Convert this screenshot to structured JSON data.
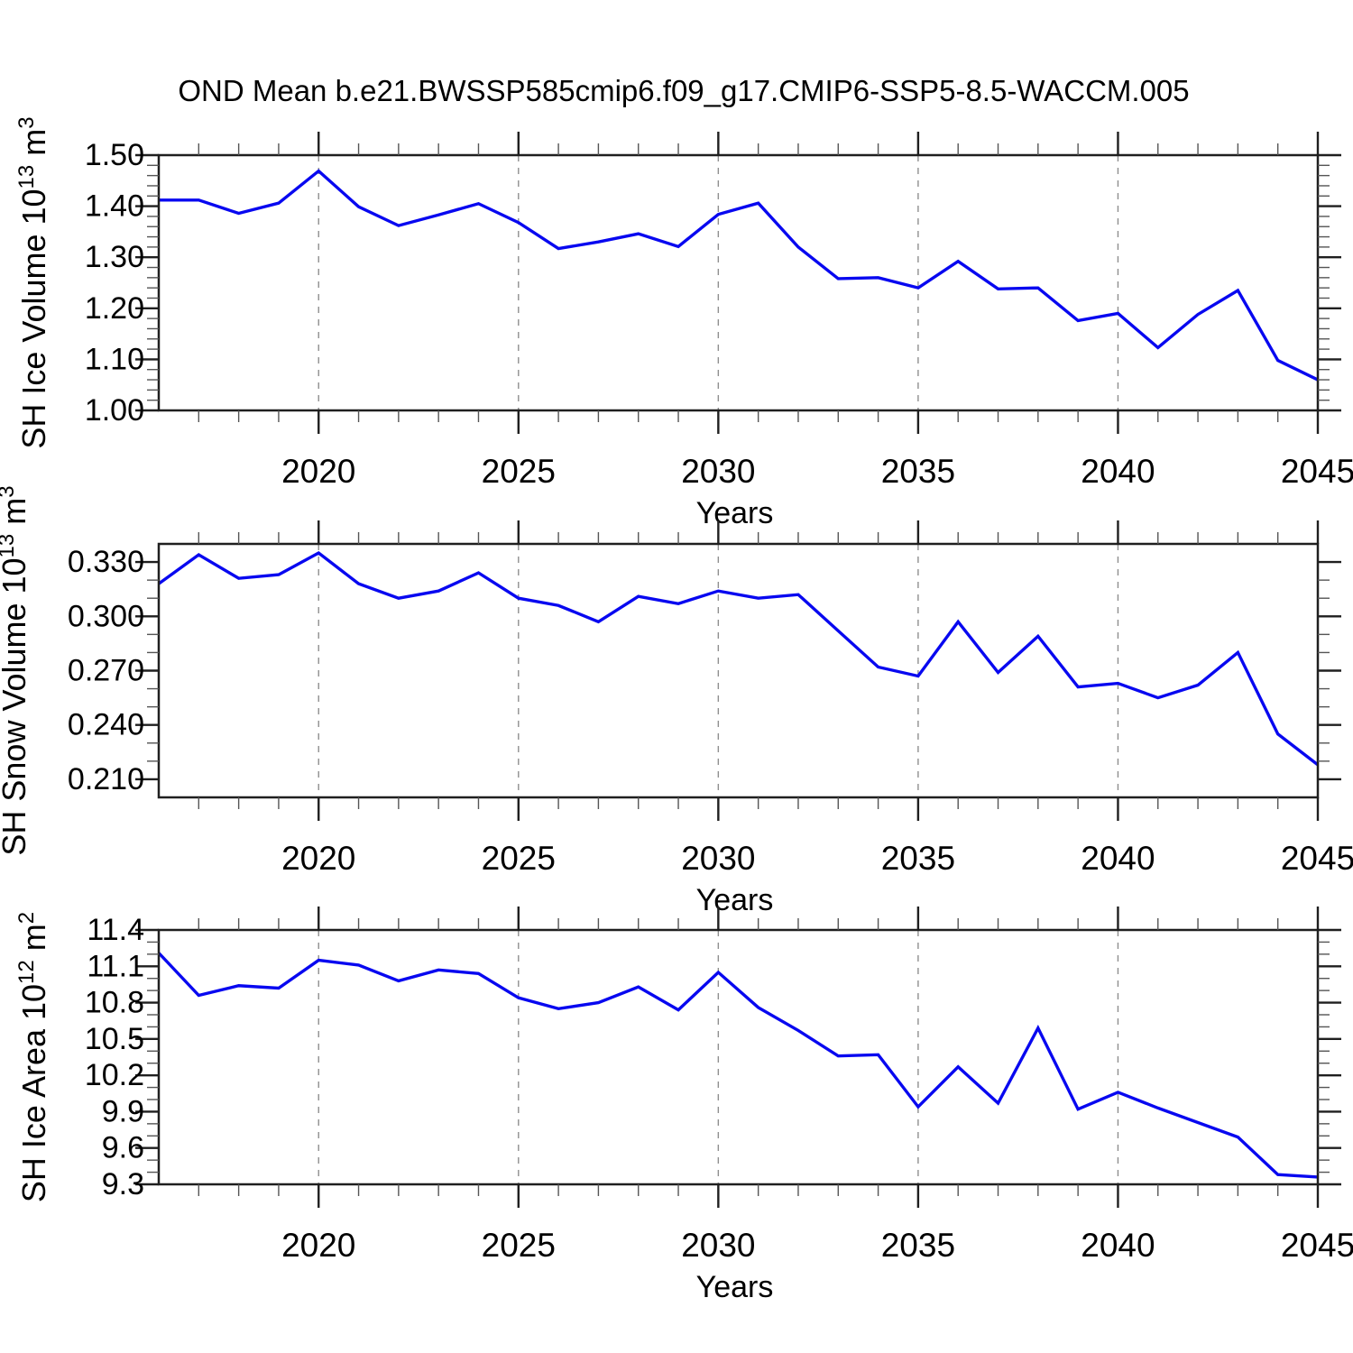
{
  "title": "OND Mean b.e21.BWSSP585cmip6.f09_g17.CMIP6-SSP5-8.5-WACCM.005",
  "colors": {
    "line": "#0808f0",
    "axis": "#1f1f1f",
    "minor_tick": "#555555",
    "grid": "#8f8f8f",
    "text": "#000000",
    "background": "#ffffff"
  },
  "x_axis": {
    "title": "Years",
    "start": 2016,
    "end": 2045,
    "tick_labels": [
      "2020",
      "2025",
      "2030",
      "2035",
      "2040",
      "2045"
    ],
    "tick_values": [
      2020,
      2025,
      2030,
      2035,
      2040,
      2045
    ],
    "gridline_years": [
      2020,
      2025,
      2030,
      2035,
      2040
    ],
    "minor_step": 1,
    "years": [
      2016,
      2017,
      2018,
      2019,
      2020,
      2021,
      2022,
      2023,
      2024,
      2025,
      2026,
      2027,
      2028,
      2029,
      2030,
      2031,
      2032,
      2033,
      2034,
      2035,
      2036,
      2037,
      2038,
      2039,
      2040,
      2041,
      2042,
      2043,
      2044,
      2045
    ]
  },
  "chart_data": [
    {
      "type": "line",
      "name": "sh-ice-volume",
      "ylabel": {
        "text": "SH Ice Volume",
        "base": "10",
        "exponent": "13",
        "unit": "m",
        "unit_exponent": "3"
      },
      "ylim": [
        1.0,
        1.5
      ],
      "ytick_values": [
        1.0,
        1.1,
        1.2,
        1.3,
        1.4,
        1.5
      ],
      "ytick_labels": [
        "1.00",
        "1.10",
        "1.20",
        "1.30",
        "1.40",
        "1.50"
      ],
      "yminor_step": 0.02,
      "values": [
        1.412,
        1.412,
        1.386,
        1.406,
        1.469,
        1.399,
        1.362,
        1.383,
        1.405,
        1.368,
        1.317,
        1.33,
        1.346,
        1.321,
        1.384,
        1.406,
        1.32,
        1.258,
        1.26,
        1.24,
        1.292,
        1.238,
        1.24,
        1.176,
        1.19,
        1.123,
        1.188,
        1.235,
        1.098,
        1.06
      ]
    },
    {
      "type": "line",
      "name": "sh-snow-volume",
      "ylabel": {
        "text": "SH Snow Volume",
        "base": "10",
        "exponent": "13",
        "unit": "m",
        "unit_exponent": "3"
      },
      "ylim": [
        0.2,
        0.34
      ],
      "ytick_values": [
        0.21,
        0.24,
        0.27,
        0.3,
        0.33
      ],
      "ytick_labels": [
        "0.210",
        "0.240",
        "0.270",
        "0.300",
        "0.330"
      ],
      "yminor_step": 0.01,
      "values": [
        0.318,
        0.334,
        0.321,
        0.323,
        0.335,
        0.318,
        0.31,
        0.314,
        0.324,
        0.31,
        0.306,
        0.297,
        0.311,
        0.307,
        0.314,
        0.31,
        0.312,
        0.292,
        0.272,
        0.267,
        0.297,
        0.269,
        0.289,
        0.261,
        0.263,
        0.255,
        0.262,
        0.28,
        0.235,
        0.218
      ]
    },
    {
      "type": "line",
      "name": "sh-ice-area",
      "ylabel": {
        "text": "SH Ice Area",
        "base": "10",
        "exponent": "12",
        "unit": "m",
        "unit_exponent": "2"
      },
      "ylim": [
        9.3,
        11.4
      ],
      "ytick_values": [
        9.3,
        9.6,
        9.9,
        10.2,
        10.5,
        10.8,
        11.1,
        11.4
      ],
      "ytick_labels": [
        "9.3",
        "9.6",
        "9.9",
        "10.2",
        "10.5",
        "10.8",
        "11.1",
        "11.4"
      ],
      "yminor_step": 0.1,
      "values": [
        11.21,
        10.86,
        10.94,
        10.92,
        11.15,
        11.11,
        10.98,
        11.07,
        11.04,
        10.84,
        10.75,
        10.8,
        10.93,
        10.74,
        11.05,
        10.76,
        10.57,
        10.36,
        10.37,
        9.94,
        10.27,
        9.97,
        10.59,
        9.92,
        10.06,
        9.93,
        9.81,
        9.69,
        9.38,
        9.36
      ]
    }
  ]
}
